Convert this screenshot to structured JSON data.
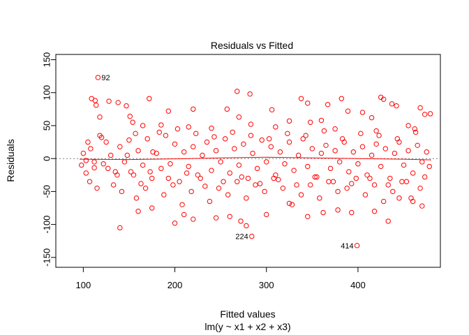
{
  "chart_data": {
    "type": "scatter",
    "title": "Residuals vs Fitted",
    "xlabel": "Fitted values",
    "subtitle": "lm(y ~ x1 + x2 + x3)",
    "ylabel": "Residuals",
    "xlim": [
      70,
      490
    ],
    "ylim": [
      -165,
      158
    ],
    "xticks": [
      100,
      200,
      300,
      400
    ],
    "yticks": [
      -150,
      -100,
      -50,
      0,
      50,
      100,
      150
    ],
    "point_color": "#ff0000",
    "smooth_color": "#ff0000",
    "zero_line_color": "#808080",
    "annotations": [
      {
        "label": "92",
        "x": 116,
        "y": 123
      },
      {
        "label": "224",
        "x": 284,
        "y": -118
      },
      {
        "label": "414",
        "x": 399,
        "y": -132
      }
    ],
    "smooth": {
      "x": [
        96,
        150,
        200,
        250,
        300,
        350,
        400,
        450,
        480
      ],
      "y": [
        -1,
        -1.5,
        -0.5,
        1,
        2,
        1,
        0,
        -1,
        -2
      ]
    },
    "points": [
      [
        116,
        123
      ],
      [
        284,
        -118
      ],
      [
        399,
        -132
      ],
      [
        109,
        91
      ],
      [
        113,
        88
      ],
      [
        114,
        81
      ],
      [
        128,
        87
      ],
      [
        138,
        85
      ],
      [
        172,
        91
      ],
      [
        268,
        102
      ],
      [
        282,
        98
      ],
      [
        338,
        91
      ],
      [
        382,
        91
      ],
      [
        345,
        84
      ],
      [
        425,
        93
      ],
      [
        428,
        90
      ],
      [
        437,
        83
      ],
      [
        442,
        80
      ],
      [
        468,
        77
      ],
      [
        473,
        67
      ],
      [
        479,
        68
      ],
      [
        415,
        62
      ],
      [
        405,
        70
      ],
      [
        389,
        72
      ],
      [
        367,
        82
      ],
      [
        360,
        58
      ],
      [
        118,
        63
      ],
      [
        151,
        64
      ],
      [
        147,
        80
      ],
      [
        220,
        75
      ],
      [
        193,
        72
      ],
      [
        270,
        63
      ],
      [
        257,
        75
      ],
      [
        306,
        74
      ],
      [
        325,
        57
      ],
      [
        348,
        55
      ],
      [
        154,
        55
      ],
      [
        165,
        50
      ],
      [
        185,
        51
      ],
      [
        215,
        48
      ],
      [
        240,
        46
      ],
      [
        283,
        52
      ],
      [
        310,
        48
      ],
      [
        375,
        45
      ],
      [
        420,
        42
      ],
      [
        455,
        50
      ],
      [
        462,
        45
      ],
      [
        100,
        8
      ],
      [
        103,
        -3
      ],
      [
        108,
        15
      ],
      [
        112,
        -14
      ],
      [
        120,
        32
      ],
      [
        125,
        25
      ],
      [
        130,
        5
      ],
      [
        135,
        -20
      ],
      [
        140,
        18
      ],
      [
        145,
        -5
      ],
      [
        150,
        28
      ],
      [
        155,
        -25
      ],
      [
        160,
        12
      ],
      [
        165,
        -10
      ],
      [
        170,
        30
      ],
      [
        175,
        -30
      ],
      [
        180,
        8
      ],
      [
        185,
        -15
      ],
      [
        190,
        35
      ],
      [
        195,
        -8
      ],
      [
        200,
        22
      ],
      [
        205,
        -35
      ],
      [
        210,
        10
      ],
      [
        215,
        -12
      ],
      [
        220,
        18
      ],
      [
        225,
        -25
      ],
      [
        230,
        5
      ],
      [
        235,
        25
      ],
      [
        240,
        -18
      ],
      [
        245,
        12
      ],
      [
        250,
        -5
      ],
      [
        255,
        30
      ],
      [
        260,
        -22
      ],
      [
        265,
        15
      ],
      [
        270,
        -10
      ],
      [
        275,
        22
      ],
      [
        280,
        -30
      ],
      [
        285,
        8
      ],
      [
        290,
        -15
      ],
      [
        295,
        28
      ],
      [
        300,
        -5
      ],
      [
        305,
        18
      ],
      [
        310,
        -25
      ],
      [
        315,
        10
      ],
      [
        320,
        -8
      ],
      [
        325,
        25
      ],
      [
        330,
        -18
      ],
      [
        335,
        5
      ],
      [
        340,
        30
      ],
      [
        345,
        -12
      ],
      [
        350,
        15
      ],
      [
        355,
        -28
      ],
      [
        360,
        8
      ],
      [
        365,
        20
      ],
      [
        370,
        -15
      ],
      [
        375,
        12
      ],
      [
        380,
        -5
      ],
      [
        385,
        25
      ],
      [
        390,
        -20
      ],
      [
        395,
        10
      ],
      [
        400,
        -8
      ],
      [
        405,
        18
      ],
      [
        410,
        -25
      ],
      [
        415,
        5
      ],
      [
        420,
        22
      ],
      [
        425,
        -12
      ],
      [
        430,
        15
      ],
      [
        435,
        -30
      ],
      [
        440,
        8
      ],
      [
        445,
        25
      ],
      [
        450,
        -10
      ],
      [
        455,
        12
      ],
      [
        460,
        -22
      ],
      [
        465,
        20
      ],
      [
        470,
        -5
      ],
      [
        475,
        10
      ],
      [
        478,
        -12
      ],
      [
        98,
        -10
      ],
      [
        105,
        25
      ],
      [
        115,
        -45
      ],
      [
        122,
        -8
      ],
      [
        133,
        -40
      ],
      [
        142,
        -50
      ],
      [
        152,
        -20
      ],
      [
        158,
        -60
      ],
      [
        168,
        -45
      ],
      [
        176,
        10
      ],
      [
        188,
        -55
      ],
      [
        198,
        -40
      ],
      [
        208,
        -70
      ],
      [
        218,
        -50
      ],
      [
        228,
        -30
      ],
      [
        238,
        -65
      ],
      [
        248,
        -45
      ],
      [
        258,
        -55
      ],
      [
        268,
        -35
      ],
      [
        278,
        -60
      ],
      [
        288,
        -40
      ],
      [
        298,
        -50
      ],
      [
        308,
        -30
      ],
      [
        318,
        -45
      ],
      [
        328,
        -70
      ],
      [
        338,
        -55
      ],
      [
        348,
        -40
      ],
      [
        358,
        -60
      ],
      [
        368,
        -35
      ],
      [
        378,
        -50
      ],
      [
        388,
        -45
      ],
      [
        398,
        -30
      ],
      [
        408,
        -55
      ],
      [
        418,
        -40
      ],
      [
        428,
        -65
      ],
      [
        438,
        -50
      ],
      [
        448,
        -35
      ],
      [
        458,
        -60
      ],
      [
        468,
        -45
      ],
      [
        112,
        -5
      ],
      [
        140,
        -105
      ],
      [
        160,
        -80
      ],
      [
        175,
        -75
      ],
      [
        200,
        -98
      ],
      [
        210,
        -85
      ],
      [
        220,
        -92
      ],
      [
        245,
        -90
      ],
      [
        260,
        -88
      ],
      [
        272,
        -95
      ],
      [
        278,
        -102
      ],
      [
        300,
        -85
      ],
      [
        325,
        -68
      ],
      [
        345,
        -88
      ],
      [
        362,
        -82
      ],
      [
        378,
        -78
      ],
      [
        393,
        -82
      ],
      [
        418,
        -80
      ],
      [
        433,
        -95
      ],
      [
        445,
        -60
      ],
      [
        460,
        -65
      ],
      [
        470,
        -72
      ],
      [
        103,
        -22
      ],
      [
        107,
        -35
      ],
      [
        118,
        35
      ],
      [
        127,
        -15
      ],
      [
        137,
        -25
      ],
      [
        148,
        5
      ],
      [
        157,
        38
      ],
      [
        163,
        -38
      ],
      [
        173,
        -20
      ],
      [
        183,
        40
      ],
      [
        193,
        -30
      ],
      [
        203,
        45
      ],
      [
        213,
        -22
      ],
      [
        223,
        38
      ],
      [
        233,
        -42
      ],
      [
        243,
        33
      ],
      [
        253,
        -35
      ],
      [
        263,
        40
      ],
      [
        273,
        -28
      ],
      [
        283,
        35
      ],
      [
        293,
        -38
      ],
      [
        303,
        30
      ],
      [
        313,
        -32
      ],
      [
        323,
        38
      ],
      [
        333,
        -40
      ],
      [
        343,
        35
      ],
      [
        353,
        -28
      ],
      [
        363,
        42
      ],
      [
        373,
        -35
      ],
      [
        383,
        30
      ],
      [
        393,
        -38
      ],
      [
        403,
        38
      ],
      [
        413,
        -30
      ],
      [
        423,
        35
      ],
      [
        433,
        -40
      ],
      [
        443,
        30
      ],
      [
        453,
        -35
      ],
      [
        463,
        40
      ],
      [
        473,
        -28
      ]
    ]
  }
}
